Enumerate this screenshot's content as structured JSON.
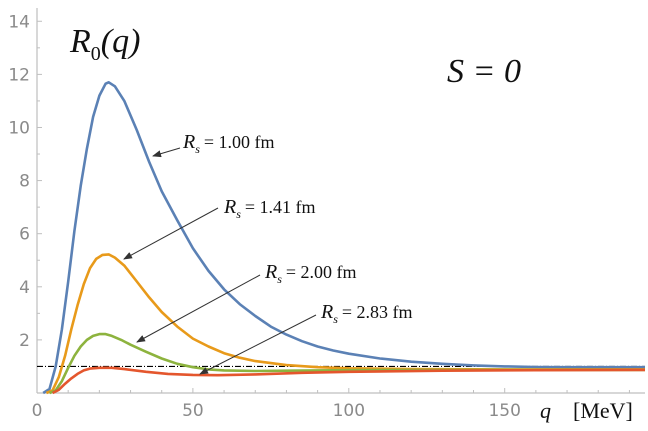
{
  "chart_data": {
    "type": "line",
    "title_label": {
      "base": "R",
      "sub": "0",
      "arg": "(q)"
    },
    "spin_label": "S = 0",
    "xlabel": {
      "var": "q",
      "unit": "[MeV]"
    },
    "xlim": [
      0,
      195
    ],
    "ylim": [
      0,
      14.5
    ],
    "x_ticks": [
      0,
      50,
      100,
      150
    ],
    "y_ticks": [
      2,
      4,
      6,
      8,
      10,
      12,
      14
    ],
    "reference_line": {
      "y": 1.0,
      "style": "dash-dot",
      "color": "#000000"
    },
    "colors": {
      "blue": "#5b81b5",
      "orange": "#e89a1a",
      "green": "#8db33e",
      "red": "#e4562d"
    },
    "series": [
      {
        "name": "R_s = 1.00 fm",
        "label": {
          "base": "R",
          "sub": "s",
          "value": "= 1.00 fm"
        },
        "color": "#5b81b5",
        "points": [
          [
            2,
            0
          ],
          [
            4,
            0.15
          ],
          [
            6,
            1.0
          ],
          [
            8,
            2.4
          ],
          [
            10,
            4.2
          ],
          [
            12,
            6.1
          ],
          [
            14,
            7.8
          ],
          [
            16,
            9.2
          ],
          [
            18,
            10.4
          ],
          [
            20,
            11.2
          ],
          [
            22,
            11.65
          ],
          [
            23,
            11.7
          ],
          [
            25,
            11.55
          ],
          [
            28,
            11.0
          ],
          [
            32,
            9.9
          ],
          [
            36,
            8.7
          ],
          [
            40,
            7.6
          ],
          [
            45,
            6.5
          ],
          [
            50,
            5.45
          ],
          [
            55,
            4.6
          ],
          [
            60,
            3.9
          ],
          [
            65,
            3.35
          ],
          [
            70,
            2.9
          ],
          [
            75,
            2.5
          ],
          [
            80,
            2.2
          ],
          [
            85,
            1.95
          ],
          [
            90,
            1.75
          ],
          [
            95,
            1.6
          ],
          [
            100,
            1.48
          ],
          [
            110,
            1.3
          ],
          [
            120,
            1.18
          ],
          [
            130,
            1.1
          ],
          [
            140,
            1.04
          ],
          [
            150,
            1.0
          ],
          [
            160,
            0.98
          ],
          [
            170,
            0.97
          ],
          [
            180,
            0.97
          ],
          [
            195,
            0.97
          ]
        ]
      },
      {
        "name": "R_s = 1.41 fm",
        "label": {
          "base": "R",
          "sub": "s",
          "value": "= 1.41 fm"
        },
        "color": "#e89a1a",
        "points": [
          [
            3,
            0
          ],
          [
            5,
            0.1
          ],
          [
            7,
            0.6
          ],
          [
            9,
            1.4
          ],
          [
            11,
            2.4
          ],
          [
            13,
            3.3
          ],
          [
            15,
            4.1
          ],
          [
            17,
            4.7
          ],
          [
            19,
            5.05
          ],
          [
            21,
            5.2
          ],
          [
            23,
            5.22
          ],
          [
            25,
            5.1
          ],
          [
            28,
            4.8
          ],
          [
            32,
            4.2
          ],
          [
            36,
            3.6
          ],
          [
            40,
            3.05
          ],
          [
            45,
            2.5
          ],
          [
            50,
            2.05
          ],
          [
            55,
            1.75
          ],
          [
            60,
            1.5
          ],
          [
            65,
            1.33
          ],
          [
            70,
            1.2
          ],
          [
            80,
            1.05
          ],
          [
            90,
            0.97
          ],
          [
            100,
            0.93
          ],
          [
            120,
            0.9
          ],
          [
            150,
            0.89
          ],
          [
            195,
            0.89
          ]
        ]
      },
      {
        "name": "R_s = 2.00 fm",
        "label": {
          "base": "R",
          "sub": "s",
          "value": "= 2.00 fm"
        },
        "color": "#8db33e",
        "points": [
          [
            4,
            0
          ],
          [
            6,
            0.1
          ],
          [
            8,
            0.45
          ],
          [
            10,
            0.95
          ],
          [
            12,
            1.4
          ],
          [
            14,
            1.75
          ],
          [
            16,
            2.0
          ],
          [
            18,
            2.15
          ],
          [
            20,
            2.22
          ],
          [
            22,
            2.22
          ],
          [
            24,
            2.15
          ],
          [
            27,
            2.0
          ],
          [
            30,
            1.82
          ],
          [
            35,
            1.55
          ],
          [
            40,
            1.3
          ],
          [
            45,
            1.1
          ],
          [
            50,
            0.97
          ],
          [
            55,
            0.89
          ],
          [
            60,
            0.85
          ],
          [
            70,
            0.83
          ],
          [
            80,
            0.84
          ],
          [
            100,
            0.86
          ],
          [
            130,
            0.87
          ],
          [
            195,
            0.87
          ]
        ]
      },
      {
        "name": "R_s = 2.83 fm",
        "label": {
          "base": "R",
          "sub": "s",
          "value": "= 2.83 fm"
        },
        "color": "#e4562d",
        "points": [
          [
            5,
            0
          ],
          [
            7,
            0.12
          ],
          [
            9,
            0.35
          ],
          [
            11,
            0.55
          ],
          [
            13,
            0.72
          ],
          [
            15,
            0.85
          ],
          [
            17,
            0.92
          ],
          [
            20,
            0.95
          ],
          [
            24,
            0.95
          ],
          [
            28,
            0.9
          ],
          [
            35,
            0.8
          ],
          [
            42,
            0.72
          ],
          [
            50,
            0.68
          ],
          [
            58,
            0.67
          ],
          [
            70,
            0.7
          ],
          [
            85,
            0.76
          ],
          [
            100,
            0.8
          ],
          [
            130,
            0.84
          ],
          [
            160,
            0.86
          ],
          [
            195,
            0.87
          ]
        ]
      }
    ]
  }
}
